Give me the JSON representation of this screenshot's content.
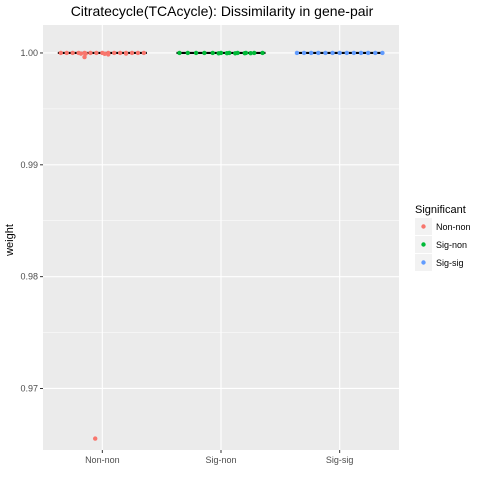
{
  "chart_data": {
    "type": "box",
    "title": "Citratecycle(TCAcycle): Dissimilarity in gene-pair",
    "xlabel": "",
    "ylabel": "weight",
    "categories": [
      "Non-non",
      "Sig-non",
      "Sig-sig"
    ],
    "ylim": [
      0.9645,
      1.0025
    ],
    "yticks": [
      0.97,
      0.98,
      0.99,
      1.0
    ],
    "ytick_labels": [
      "0.97",
      "0.98",
      "0.99",
      "1.00"
    ],
    "grid": true,
    "legend": {
      "title": "Significant",
      "position": "right",
      "entries": [
        "Non-non",
        "Sig-non",
        "Sig-sig"
      ]
    },
    "colors": {
      "Non-non": "#F8766D",
      "Sig-non": "#00BA38",
      "Sig-sig": "#619CFF",
      "panel": "#EBEBEB",
      "grid": "#FFFFFF",
      "box": "#000000"
    },
    "series": [
      {
        "name": "Non-non",
        "median": 1.0,
        "points": [
          [
            -0.35,
            1.0
          ],
          [
            -0.3,
            1.0
          ],
          [
            -0.25,
            1.0
          ],
          [
            -0.2,
            1.0
          ],
          [
            -0.15,
            1.0
          ],
          [
            -0.1,
            1.0
          ],
          [
            -0.05,
            1.0
          ],
          [
            0.0,
            1.0
          ],
          [
            0.05,
            1.0
          ],
          [
            0.1,
            1.0
          ],
          [
            0.15,
            1.0
          ],
          [
            0.2,
            1.0
          ],
          [
            0.25,
            1.0
          ],
          [
            0.3,
            1.0
          ],
          [
            0.35,
            1.0
          ],
          [
            -0.14,
            0.99995
          ],
          [
            -0.18,
            0.99994
          ],
          [
            0.2,
            0.99995
          ],
          [
            0.02,
            0.99992
          ],
          [
            0.05,
            0.99987
          ],
          [
            -0.15,
            0.99963
          ],
          [
            -0.06,
            0.96552
          ]
        ]
      },
      {
        "name": "Sig-non",
        "median": 1.0,
        "points": [
          [
            -0.35,
            1.0
          ],
          [
            -0.28,
            1.0
          ],
          [
            -0.21,
            1.0
          ],
          [
            -0.14,
            1.0
          ],
          [
            -0.07,
            1.0
          ],
          [
            0.0,
            1.0
          ],
          [
            0.07,
            1.0
          ],
          [
            0.14,
            1.0
          ],
          [
            0.21,
            1.0
          ],
          [
            0.28,
            1.0
          ],
          [
            0.35,
            1.0
          ],
          [
            -0.02,
            0.99997
          ],
          [
            0.05,
            0.99998
          ],
          [
            0.12,
            0.99997
          ],
          [
            0.2,
            0.99998
          ],
          [
            0.25,
            0.99998
          ]
        ]
      },
      {
        "name": "Sig-sig",
        "median": 1.0,
        "points": [
          [
            -0.36,
            1.0
          ],
          [
            -0.3,
            1.0
          ],
          [
            -0.24,
            1.0
          ],
          [
            -0.18,
            1.0
          ],
          [
            -0.12,
            1.0
          ],
          [
            -0.06,
            1.0
          ],
          [
            0.0,
            1.0
          ],
          [
            0.06,
            1.0
          ],
          [
            0.12,
            1.0
          ],
          [
            0.18,
            1.0
          ],
          [
            0.24,
            1.0
          ],
          [
            0.3,
            1.0
          ],
          [
            0.36,
            1.0
          ]
        ]
      }
    ]
  }
}
